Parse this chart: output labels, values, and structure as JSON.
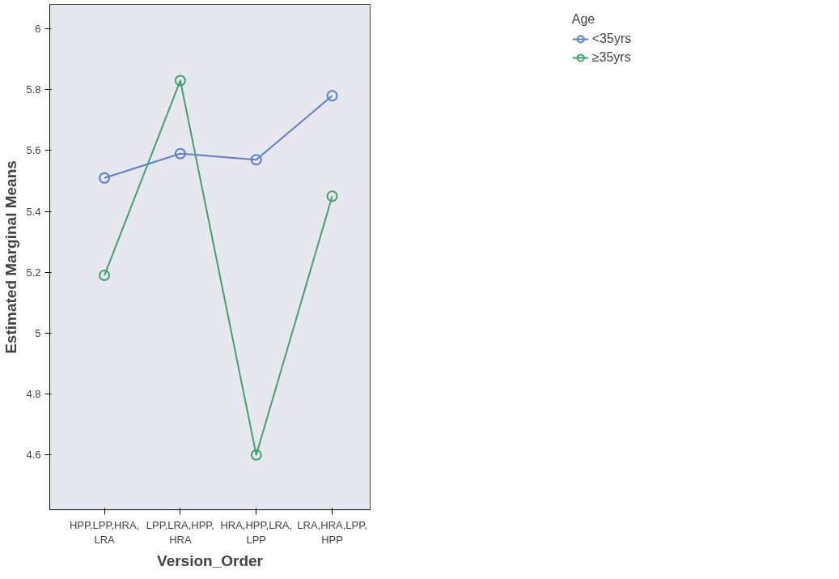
{
  "chart_data": {
    "type": "line",
    "xlabel": "Version_Order",
    "ylabel": "Estimated Marginal Means",
    "legend_title": "Age",
    "categories": [
      "HPP,LPP,HRA,\nLRA",
      "LPP,LRA,HPP,\nHRA",
      "HRA,HPP,LRA,\nLPP",
      "LRA,HRA,LPP,\nHPP"
    ],
    "series": [
      {
        "name": "<35yrs",
        "color": "#5b7fd0",
        "values": [
          5.51,
          5.59,
          5.57,
          5.78
        ]
      },
      {
        "name": "≥35yrs",
        "color": "#3fa36b",
        "values": [
          5.19,
          5.83,
          4.6,
          5.45
        ]
      }
    ],
    "ylim": [
      4.42,
      6.08
    ],
    "yticks": [
      {
        "value": 4.6,
        "label": "4.6"
      },
      {
        "value": 4.8,
        "label": "4.8"
      },
      {
        "value": 5.0,
        "label": "5"
      },
      {
        "value": 5.2,
        "label": "5.2"
      },
      {
        "value": 5.4,
        "label": "5.4"
      },
      {
        "value": 5.6,
        "label": "5.6"
      },
      {
        "value": 5.8,
        "label": "5.8"
      },
      {
        "value": 6.0,
        "label": "6"
      }
    ],
    "legend": "top right",
    "marker": "circle",
    "line_style": "solid"
  }
}
